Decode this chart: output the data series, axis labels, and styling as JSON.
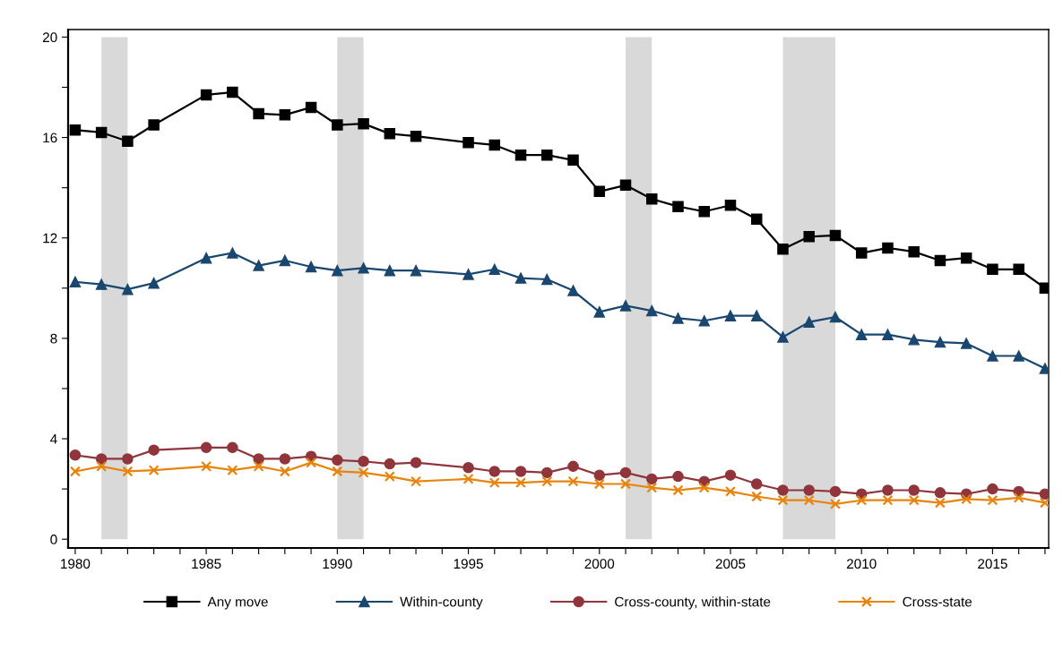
{
  "chart_data": {
    "type": "line",
    "x": [
      1980,
      1981,
      1982,
      1983,
      1985,
      1986,
      1987,
      1988,
      1989,
      1990,
      1991,
      1992,
      1993,
      1995,
      1996,
      1997,
      1998,
      1999,
      2000,
      2001,
      2002,
      2003,
      2004,
      2005,
      2006,
      2007,
      2008,
      2009,
      2010,
      2011,
      2012,
      2013,
      2014,
      2015,
      2016,
      2017
    ],
    "series": [
      {
        "name": "Any move",
        "color": "#000000",
        "marker": "square",
        "values": [
          16.3,
          16.2,
          15.85,
          16.5,
          17.7,
          17.8,
          16.95,
          16.9,
          17.2,
          16.5,
          16.55,
          16.15,
          16.05,
          15.8,
          15.7,
          15.3,
          15.3,
          15.1,
          13.85,
          14.1,
          13.55,
          13.25,
          13.05,
          13.3,
          12.75,
          11.55,
          12.05,
          12.1,
          11.4,
          11.6,
          11.45,
          11.1,
          11.2,
          10.75,
          10.75,
          10.0
        ]
      },
      {
        "name": "Within-county",
        "color": "#1a476f",
        "marker": "triangle",
        "values": [
          10.25,
          10.15,
          9.95,
          10.2,
          11.2,
          11.4,
          10.9,
          11.1,
          10.85,
          10.7,
          10.8,
          10.7,
          10.7,
          10.55,
          10.75,
          10.4,
          10.35,
          9.9,
          9.05,
          9.3,
          9.1,
          8.8,
          8.7,
          8.9,
          8.9,
          8.05,
          8.65,
          8.85,
          8.15,
          8.15,
          7.95,
          7.85,
          7.8,
          7.3,
          7.3,
          6.8
        ]
      },
      {
        "name": "Cross-county, within-state",
        "color": "#90353b",
        "marker": "circle",
        "values": [
          3.35,
          3.2,
          3.2,
          3.55,
          3.65,
          3.65,
          3.2,
          3.2,
          3.3,
          3.15,
          3.1,
          3.0,
          3.05,
          2.85,
          2.7,
          2.7,
          2.65,
          2.9,
          2.55,
          2.65,
          2.4,
          2.5,
          2.3,
          2.55,
          2.2,
          1.95,
          1.95,
          1.9,
          1.8,
          1.95,
          1.95,
          1.85,
          1.8,
          2.0,
          1.9,
          1.8
        ]
      },
      {
        "name": "Cross-state",
        "color": "#e8830c",
        "marker": "cross",
        "values": [
          2.7,
          2.9,
          2.7,
          2.75,
          2.9,
          2.75,
          2.9,
          2.7,
          3.05,
          2.7,
          2.65,
          2.5,
          2.3,
          2.4,
          2.25,
          2.25,
          2.3,
          2.3,
          2.2,
          2.2,
          2.05,
          1.95,
          2.05,
          1.9,
          1.7,
          1.55,
          1.55,
          1.4,
          1.55,
          1.55,
          1.55,
          1.45,
          1.6,
          1.55,
          1.65,
          1.45
        ]
      }
    ],
    "xlim": [
      1979.73,
      2017.14
    ],
    "xticks": [
      1980,
      {
        "value": 1981,
        "label": null
      },
      {
        "value": 1982,
        "label": null
      },
      {
        "value": 1983,
        "label": null
      },
      {
        "value": 1984,
        "label": null
      },
      1985,
      {
        "value": 1986,
        "label": null
      },
      {
        "value": 1987,
        "label": null
      },
      {
        "value": 1988,
        "label": null
      },
      {
        "value": 1989,
        "label": null
      },
      1990,
      {
        "value": 1991,
        "label": null
      },
      {
        "value": 1992,
        "label": null
      },
      {
        "value": 1993,
        "label": null
      },
      {
        "value": 1994,
        "label": null
      },
      1995,
      {
        "value": 1996,
        "label": null
      },
      {
        "value": 1997,
        "label": null
      },
      {
        "value": 1998,
        "label": null
      },
      {
        "value": 1999,
        "label": null
      },
      2000,
      {
        "value": 2001,
        "label": null
      },
      {
        "value": 2002,
        "label": null
      },
      {
        "value": 2003,
        "label": null
      },
      {
        "value": 2004,
        "label": null
      },
      2005,
      {
        "value": 2006,
        "label": null
      },
      {
        "value": 2007,
        "label": null
      },
      {
        "value": 2008,
        "label": null
      },
      {
        "value": 2009,
        "label": null
      },
      2010,
      {
        "value": 2011,
        "label": null
      },
      {
        "value": 2012,
        "label": null
      },
      {
        "value": 2013,
        "label": null
      },
      {
        "value": 2014,
        "label": null
      },
      2015,
      {
        "value": 2016,
        "label": null
      },
      {
        "value": 2017,
        "label": null
      }
    ],
    "ylim": [
      -0.35,
      20.3
    ],
    "yticks": [
      0,
      {
        "value": 2,
        "label": null
      },
      4,
      {
        "value": 6,
        "label": null
      },
      8,
      {
        "value": 10,
        "label": null
      },
      12,
      {
        "value": 14,
        "label": null
      },
      16,
      {
        "value": 18,
        "label": null
      },
      20
    ],
    "bands": [
      {
        "axis": "x",
        "from": 1981,
        "to": 1982,
        "color": "#d9d9d9"
      },
      {
        "axis": "x",
        "from": 1990,
        "to": 1991,
        "color": "#d9d9d9"
      },
      {
        "axis": "x",
        "from": 2001,
        "to": 2002,
        "color": "#d9d9d9"
      },
      {
        "axis": "x",
        "from": 2007,
        "to": 2009,
        "color": "#d9d9d9"
      }
    ],
    "grid": false,
    "legend": "bottom",
    "line_style": "solid"
  }
}
